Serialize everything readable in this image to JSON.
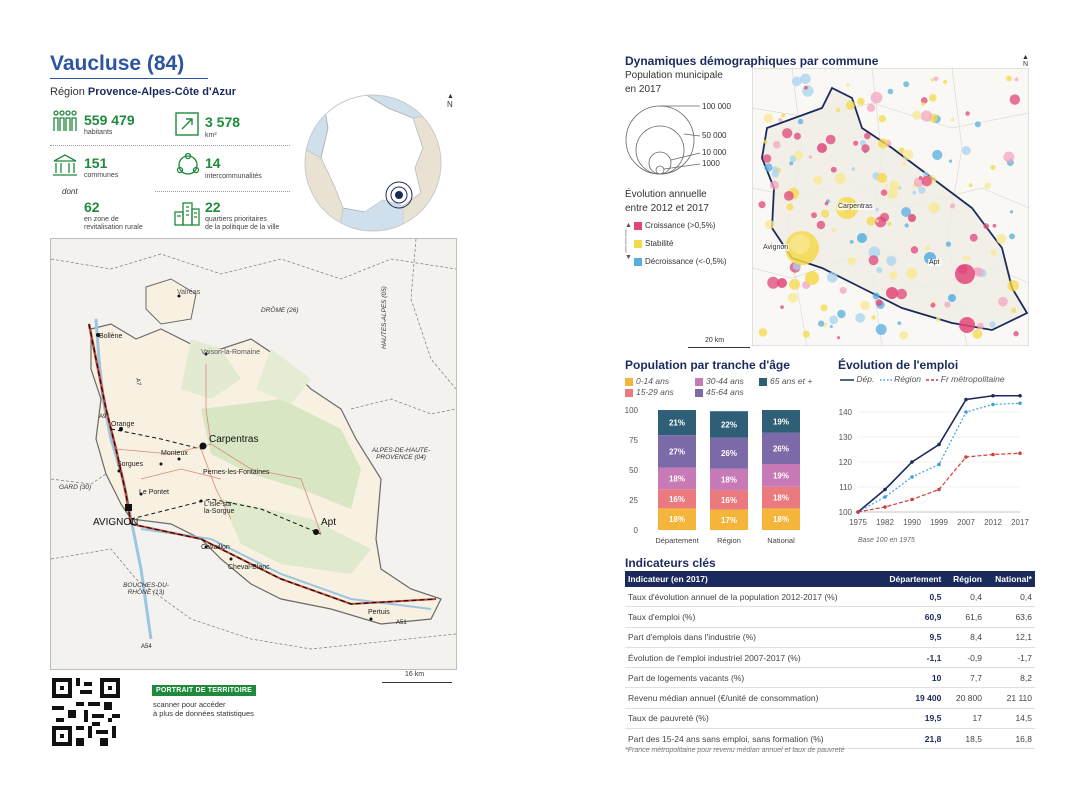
{
  "header": {
    "title": "Vaucluse (84)",
    "region_prefix": "Région",
    "region_name": "Provence-Alpes-Côte d'Azur"
  },
  "stats": {
    "habitants_value": "559 479",
    "habitants_label": "habitants",
    "km2_value": "3 578",
    "km2_label": "km²",
    "communes_value": "151",
    "communes_label": "communes",
    "interco_value": "14",
    "interco_label": "intercommunalités",
    "dont_label": "dont",
    "zrr_value": "62",
    "zrr_label_1": "en zone de",
    "zrr_label_2": "revitalisation rurale",
    "qpv_value": "22",
    "qpv_label_1": "quartiers prioritaires",
    "qpv_label_2": "de la politique de la ville"
  },
  "north_label": "N",
  "main_map": {
    "labels": {
      "drome": "DRÔME (26)",
      "hautes_alpes": "HAUTES-ALPES (05)",
      "alpes_hp_1": "ALPES-DE-HAUTE-",
      "alpes_hp_2": "PROVENCE (04)",
      "gard": "GARD (30)",
      "bdr_1": "BOUCHES-DU-",
      "bdr_2": "RHÔNE (13)"
    },
    "cities": {
      "valreas": "Valréas",
      "bollene": "Bollène",
      "vaison": "Vaison-la-Romaine",
      "orange": "Orange",
      "carpentras": "Carpentras",
      "monteux": "Monteux",
      "sorgues": "Sorgues",
      "pernes": "Pernes-les-Fontaines",
      "le_pontet": "Le Pontet",
      "isle_1": "L'Isle-sur-",
      "isle_2": "la-Sorgue",
      "avignon": "AVIGNON",
      "apt": "Apt",
      "cavaillon": "Cavaillon",
      "cheval_blanc": "Cheval-Blanc",
      "pertuis": "Pertuis"
    },
    "roads": {
      "a7": "A7",
      "a9": "A9",
      "a51": "A51",
      "a54": "A54"
    },
    "scale": "16 km"
  },
  "portrait": {
    "tag": "PORTRAIT DE TERRITOIRE",
    "line1": "scanner pour accéder",
    "line2": "à plus de données statistiques"
  },
  "demo": {
    "title": "Dynamiques démographiques par commune",
    "pop_label": "Population municipale",
    "pop_year": "en 2017",
    "sizes": [
      "100 000",
      "50 000",
      "10 000",
      "1000"
    ],
    "evo_title": "Évolution annuelle",
    "evo_sub": "entre 2012 et 2017",
    "legend": [
      {
        "label": "Croissance (>0,5%)",
        "color": "#e0467a"
      },
      {
        "label": "Stabilité",
        "color": "#f4d94a"
      },
      {
        "label": "Décroissance (<-0,5%)",
        "color": "#55aee0"
      }
    ],
    "scale": "20 km",
    "city_labels": {
      "carpentras": "Carpentras",
      "avignon": "Avignon",
      "apt": "Apt"
    }
  },
  "age_chart": {
    "title": "Population par tranche d'âge",
    "legend": [
      {
        "name": "0-14 ans",
        "color": "#f5b53a"
      },
      {
        "name": "30-44 ans",
        "color": "#c87ab6"
      },
      {
        "name": "65 ans et +",
        "color": "#2e5f77"
      },
      {
        "name": "15-29 ans",
        "color": "#ea7a7e"
      },
      {
        "name": "45-64 ans",
        "color": "#7c6aa8"
      }
    ],
    "chart_data": {
      "type": "bar",
      "stacked": true,
      "categories": [
        "Département",
        "Région",
        "National"
      ],
      "ylim": [
        0,
        100
      ],
      "yticks": [
        0,
        25,
        50,
        75,
        100
      ],
      "series": [
        {
          "name": "0-14 ans",
          "color": "#f5b53a",
          "values": [
            18,
            17,
            18
          ]
        },
        {
          "name": "15-29 ans",
          "color": "#ea7a7e",
          "values": [
            16,
            16,
            18
          ]
        },
        {
          "name": "30-44 ans",
          "color": "#c87ab6",
          "values": [
            18,
            18,
            19
          ]
        },
        {
          "name": "45-64 ans",
          "color": "#7c6aa8",
          "values": [
            27,
            26,
            26
          ]
        },
        {
          "name": "65 ans et +",
          "color": "#2e5f77",
          "values": [
            21,
            22,
            19
          ]
        }
      ]
    }
  },
  "emploi_chart": {
    "title": "Évolution de l'emploi",
    "legend": [
      {
        "name": "Dép.",
        "color": "#1b2a5c",
        "style": "solid"
      },
      {
        "name": "Région",
        "color": "#3aa0e0",
        "style": "dotted"
      },
      {
        "name": "Fr métropolitaine",
        "color": "#d23c3c",
        "style": "dashed"
      }
    ],
    "note": "Base 100 en 1975",
    "chart_data": {
      "type": "line",
      "x": [
        "1975",
        "1982",
        "1990",
        "1999",
        "2007",
        "2012",
        "2017"
      ],
      "ylim": [
        100,
        148
      ],
      "yticks": [
        100,
        110,
        120,
        130,
        140
      ],
      "series": [
        {
          "name": "Dép.",
          "values": [
            100,
            109,
            120,
            127,
            145,
            146.5,
            146.5
          ]
        },
        {
          "name": "Région",
          "values": [
            100,
            106,
            114,
            119,
            140,
            143,
            143.5
          ]
        },
        {
          "name": "Fr métropolitaine",
          "values": [
            100,
            102,
            105,
            109,
            122,
            123,
            123.5
          ]
        }
      ]
    }
  },
  "indicators": {
    "title": "Indicateurs clés",
    "headers": [
      "Indicateur (en 2017)",
      "Département",
      "Région",
      "National*"
    ],
    "rows": [
      [
        "Taux d'évolution annuel de la population 2012-2017 (%)",
        "0,5",
        "0,4",
        "0,4"
      ],
      [
        "Taux d'emploi (%)",
        "60,9",
        "61,6",
        "63,6"
      ],
      [
        "Part d'emplois dans l'industrie (%)",
        "9,5",
        "8,4",
        "12,1"
      ],
      [
        "Évolution de l'emploi industriel 2007-2017 (%)",
        "-1,1",
        "-0,9",
        "-1,7"
      ],
      [
        "Part de logements vacants (%)",
        "10",
        "7,7",
        "8,2"
      ],
      [
        "Revenu médian annuel (€/unité de consommation)",
        "19 400",
        "20 800",
        "21 110"
      ],
      [
        "Taux de pauvreté (%)",
        "19,5",
        "17",
        "14,5"
      ],
      [
        "Part des 15-24 ans sans emploi, sans formation (%)",
        "21,8",
        "18,5",
        "16,8"
      ]
    ],
    "footnote": "*France métropolitaine pour revenu médian annuel et taux de pauvreté"
  }
}
